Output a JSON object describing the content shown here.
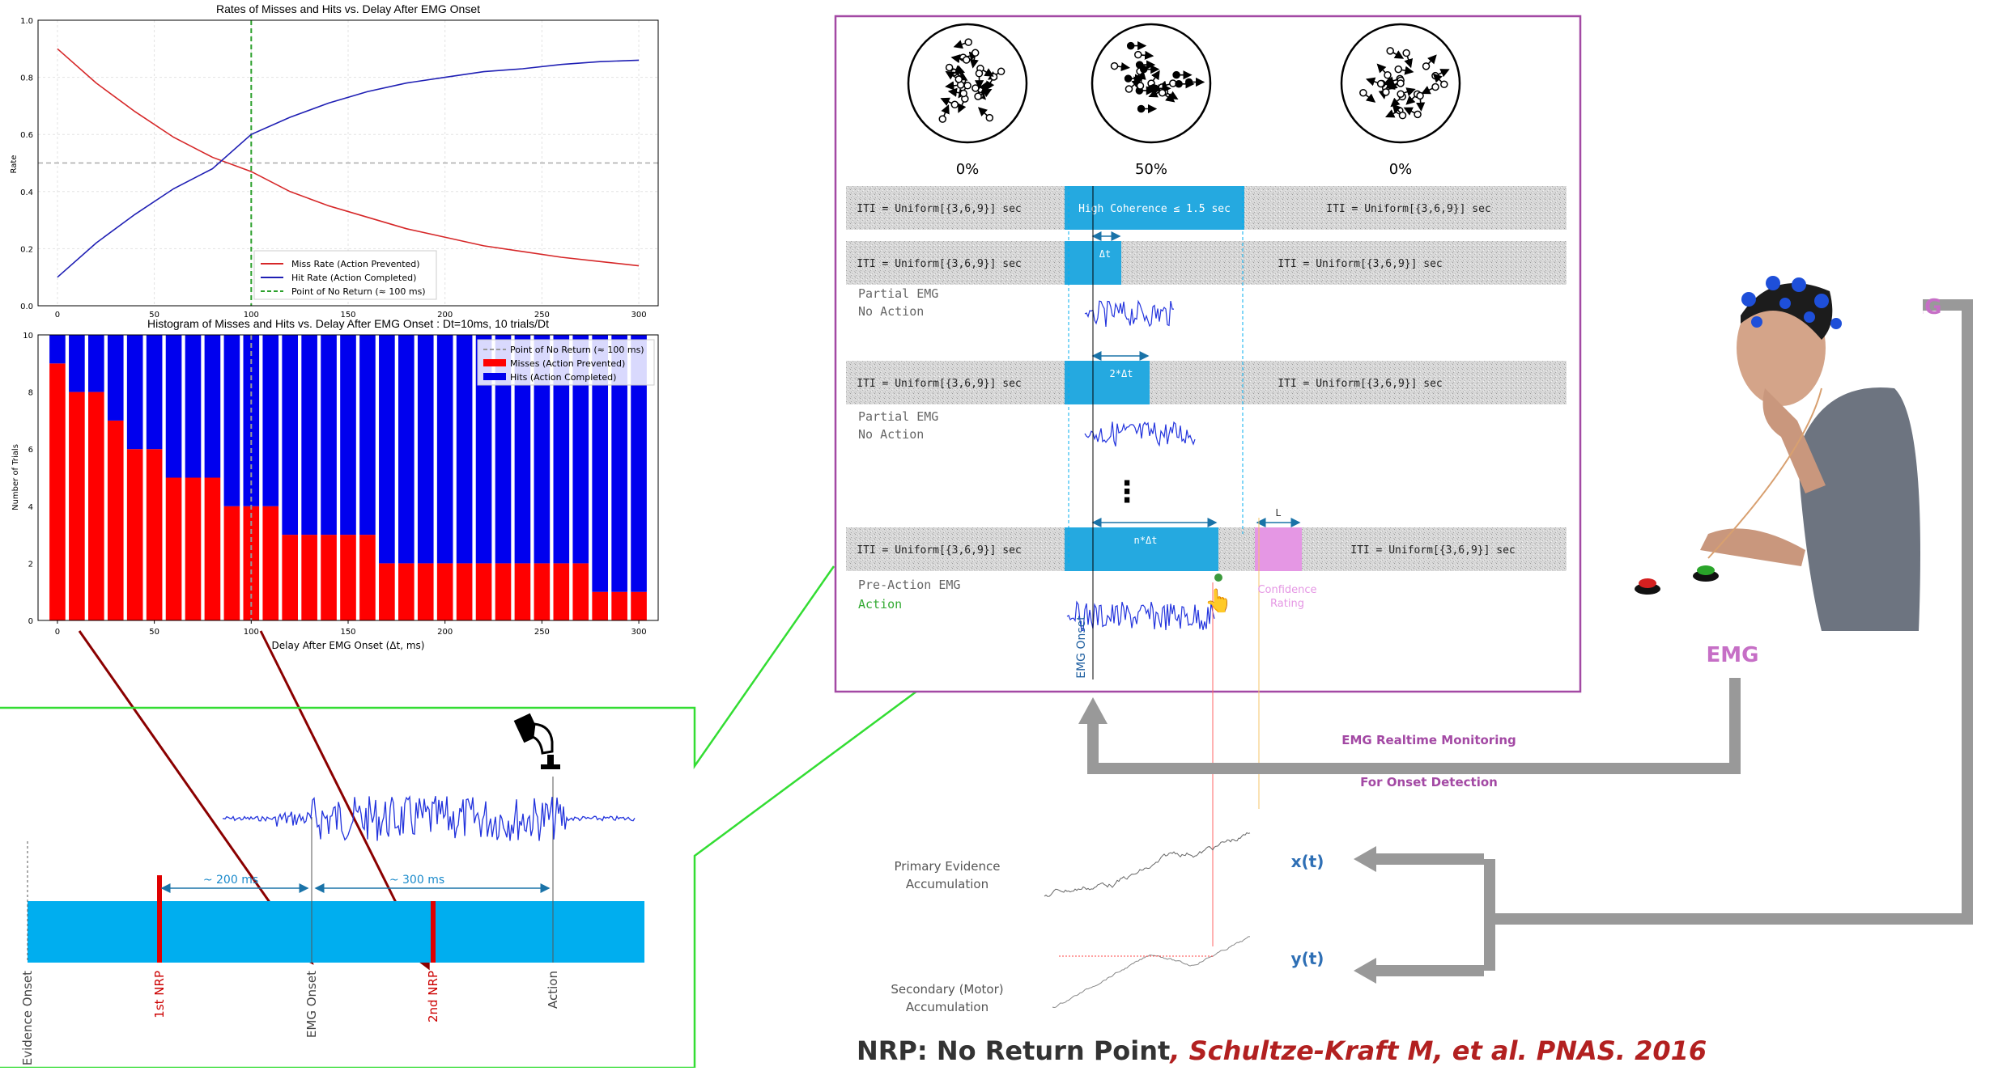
{
  "chart_data": [
    {
      "type": "line",
      "title": "Rates of Misses and Hits vs. Delay After EMG Onset",
      "xlabel": "",
      "ylabel": "Rate",
      "xlim": [
        -10,
        310
      ],
      "ylim": [
        0.0,
        1.0
      ],
      "x_ticks": [
        "0",
        "50",
        "100",
        "150",
        "200",
        "250",
        "300"
      ],
      "y_ticks": [
        "0.0",
        "0.2",
        "0.4",
        "0.6",
        "0.8",
        "1.0"
      ],
      "grid": true,
      "legend_position": "bottom-right",
      "x": [
        0,
        20,
        40,
        60,
        80,
        100,
        120,
        140,
        160,
        180,
        200,
        220,
        240,
        260,
        280,
        300
      ],
      "series": [
        {
          "name": "Miss Rate (Action Prevented)",
          "color": "#d62728",
          "values": [
            0.9,
            0.78,
            0.68,
            0.59,
            0.52,
            0.47,
            0.4,
            0.35,
            0.31,
            0.27,
            0.24,
            0.21,
            0.19,
            0.17,
            0.155,
            0.14
          ]
        },
        {
          "name": "Hit Rate (Action Completed)",
          "color": "#1f1fb4",
          "values": [
            0.1,
            0.22,
            0.32,
            0.41,
            0.48,
            0.6,
            0.66,
            0.71,
            0.75,
            0.78,
            0.8,
            0.82,
            0.83,
            0.845,
            0.855,
            0.86
          ]
        }
      ],
      "reference_lines": [
        {
          "name": "Point of No Return (≈ 100 ms)",
          "orientation": "vertical",
          "x": 100,
          "color": "#2ca02c"
        },
        {
          "orientation": "horizontal",
          "y": 0.5,
          "color": "#aaaaaa"
        }
      ]
    },
    {
      "type": "bar",
      "stacked": true,
      "title": "Histogram of Misses and Hits vs. Delay After EMG Onset : Dt=10ms, 10 trials/Dt",
      "xlabel": "Delay After EMG Onset (Δt, ms)",
      "ylabel": "Number of Trials",
      "xlim": [
        -10,
        310
      ],
      "ylim": [
        0,
        10
      ],
      "x_ticks": [
        "0",
        "50",
        "100",
        "150",
        "200",
        "250",
        "300"
      ],
      "y_ticks": [
        "0",
        "2",
        "4",
        "6",
        "8",
        "10"
      ],
      "legend_position": "top-right",
      "x": [
        0,
        10,
        20,
        30,
        40,
        50,
        60,
        70,
        80,
        90,
        100,
        110,
        120,
        130,
        140,
        150,
        160,
        170,
        180,
        190,
        200,
        210,
        220,
        230,
        240,
        250,
        260,
        270,
        280,
        290,
        300
      ],
      "series": [
        {
          "name": "Misses (Action Prevented)",
          "color": "#ff0000",
          "values": [
            9,
            8,
            8,
            7,
            6,
            6,
            5,
            5,
            5,
            4,
            4,
            4,
            3,
            3,
            3,
            3,
            3,
            2,
            2,
            2,
            2,
            2,
            2,
            2,
            2,
            2,
            2,
            2,
            1,
            1,
            1
          ]
        },
        {
          "name": "Hits (Action Completed)",
          "color": "#0000ee",
          "values": [
            1,
            2,
            2,
            3,
            4,
            4,
            5,
            5,
            5,
            6,
            6,
            6,
            7,
            7,
            7,
            7,
            7,
            8,
            8,
            8,
            8,
            8,
            8,
            8,
            8,
            8,
            8,
            8,
            9,
            9,
            9
          ]
        }
      ],
      "reference_lines": [
        {
          "name": "Point of No Return (≈ 100 ms)",
          "orientation": "vertical",
          "x": 100,
          "color": "#999999"
        }
      ]
    }
  ],
  "timeline": {
    "labels": [
      "Evidence Onset",
      "1st NRP",
      "EMG Onset",
      "2nd NRP",
      "Action"
    ],
    "interval_1": "~ 200 ms",
    "interval_2": "~ 300 ms"
  },
  "paradigm": {
    "coherence": [
      "0%",
      "50%",
      "0%"
    ],
    "iti": "ITI = Uniform[{3,6,9}] sec",
    "high_coherence": "High Coherence ≤ 1.5 sec",
    "delta_labels": [
      "Δt",
      "2*Δt",
      "n*Δt"
    ],
    "conf_label": "L",
    "conf_text": "Confidence Rating",
    "row_labels": [
      {
        "line1": "Partial EMG",
        "line2": "No Action"
      },
      {
        "line1": "Partial EMG",
        "line2": "No Action"
      },
      {
        "line1": "Pre-Action EMG",
        "line2": "Action"
      }
    ],
    "emg_onset": "EMG Onset",
    "ellipsis": "⋮"
  },
  "flow": {
    "eeg": "EEG",
    "emg": "EMG",
    "monitor_1": "EMG Realtime Monitoring",
    "monitor_2": "For Onset Detection",
    "primary": "Primary Evidence",
    "primary_2": "Accumulation",
    "secondary": "Secondary (Motor)",
    "secondary_2": "Accumulation",
    "xt": "x(t)",
    "yt": "y(t)"
  },
  "footer": {
    "prefix": "NRP: No Return Point",
    "citation": ", Schultze-Kraft M, et al. PNAS. 2016"
  },
  "colors": {
    "red": "#ff0000",
    "blue": "#0000ee",
    "cyan": "#00aeef",
    "purple": "#a349a4",
    "green_box": "#33dd33",
    "dark_red_arrow": "#8b0000",
    "grey_flow": "#999999",
    "confidence": "#e597e4"
  }
}
